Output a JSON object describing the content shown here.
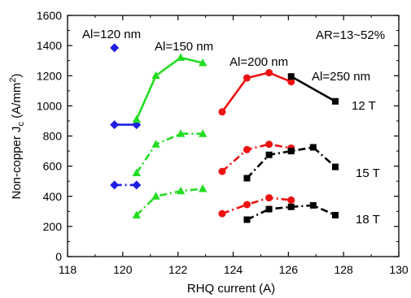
{
  "chart_data": {
    "type": "line",
    "xlabel": "RHQ current (A)",
    "ylabel": "Non-copper J",
    "ylabel_sub": "c",
    "ylabel_unit": " (A/mm",
    "ylabel_sup": "2",
    "ylabel_close": ")",
    "xlim": [
      118,
      130
    ],
    "ylim": [
      0,
      1600
    ],
    "xticks": [
      118,
      120,
      122,
      124,
      126,
      128,
      130
    ],
    "yticks": [
      0,
      200,
      400,
      600,
      800,
      1000,
      1200,
      1400,
      1600
    ],
    "grid": false,
    "annotations": {
      "al120": "Al=120 nm",
      "al150": "Al=150 nm",
      "al200": "Al=200 nm",
      "al250": "Al=250 nm",
      "ar": "AR=13~52%",
      "f12": "12 T",
      "f15": "15 T",
      "f18": "18 T"
    },
    "series": [
      {
        "group": "Al=120 nm",
        "field": "12 T",
        "color": "#1f1fe0",
        "marker": "diamond",
        "line": "solid",
        "points": [
          [
            119.7,
            875
          ],
          [
            120.5,
            875
          ]
        ]
      },
      {
        "group": "Al=120 nm",
        "field": "15 T",
        "color": "#1f1fe0",
        "marker": "diamond",
        "line": "dashdot",
        "points": [
          [
            119.7,
            475
          ],
          [
            120.5,
            475
          ]
        ]
      },
      {
        "group": "Al=120 nm",
        "field": "",
        "color": "#1f1fe0",
        "marker": "diamond",
        "line": "none",
        "points": [
          [
            119.7,
            1385
          ]
        ]
      },
      {
        "group": "Al=150 nm",
        "field": "12 T",
        "color": "#22dd22",
        "marker": "triangle",
        "line": "solid",
        "points": [
          [
            120.5,
            910
          ],
          [
            121.2,
            1200
          ],
          [
            122.1,
            1320
          ],
          [
            122.9,
            1285
          ]
        ]
      },
      {
        "group": "Al=150 nm",
        "field": "15 T",
        "color": "#22dd22",
        "marker": "triangle",
        "line": "dashdot",
        "points": [
          [
            120.5,
            555
          ],
          [
            121.2,
            745
          ],
          [
            122.1,
            815
          ],
          [
            122.9,
            815
          ]
        ]
      },
      {
        "group": "Al=150 nm",
        "field": "18 T",
        "color": "#22dd22",
        "marker": "triangle",
        "line": "dashdot",
        "points": [
          [
            120.5,
            275
          ],
          [
            121.2,
            400
          ],
          [
            122.1,
            435
          ],
          [
            122.9,
            450
          ]
        ]
      },
      {
        "group": "Al=200 nm",
        "field": "12 T",
        "color": "#ee1111",
        "marker": "circle",
        "line": "solid",
        "points": [
          [
            123.6,
            960
          ],
          [
            124.5,
            1185
          ],
          [
            125.3,
            1220
          ],
          [
            126.1,
            1160
          ]
        ]
      },
      {
        "group": "Al=200 nm",
        "field": "15 T",
        "color": "#ee1111",
        "marker": "circle",
        "line": "dashdot",
        "points": [
          [
            123.6,
            565
          ],
          [
            124.5,
            710
          ],
          [
            125.3,
            745
          ],
          [
            126.1,
            720
          ]
        ]
      },
      {
        "group": "Al=200 nm",
        "field": "18 T",
        "color": "#ee1111",
        "marker": "circle",
        "line": "dashdot",
        "points": [
          [
            123.6,
            285
          ],
          [
            124.5,
            345
          ],
          [
            125.3,
            390
          ],
          [
            126.1,
            375
          ]
        ]
      },
      {
        "group": "Al=250 nm",
        "field": "12 T",
        "color": "#000000",
        "marker": "square",
        "line": "solid",
        "points": [
          [
            126.1,
            1195
          ],
          [
            127.7,
            1030
          ]
        ]
      },
      {
        "group": "Al=250 nm",
        "field": "15 T",
        "color": "#000000",
        "marker": "square",
        "line": "dashdot",
        "points": [
          [
            124.5,
            520
          ],
          [
            125.3,
            675
          ],
          [
            126.1,
            700
          ],
          [
            126.9,
            725
          ],
          [
            127.7,
            595
          ]
        ]
      },
      {
        "group": "Al=250 nm",
        "field": "18 T",
        "color": "#000000",
        "marker": "square",
        "line": "dashdot",
        "points": [
          [
            124.5,
            245
          ],
          [
            125.3,
            315
          ],
          [
            126.1,
            330
          ],
          [
            126.9,
            340
          ],
          [
            127.7,
            275
          ]
        ]
      }
    ]
  }
}
